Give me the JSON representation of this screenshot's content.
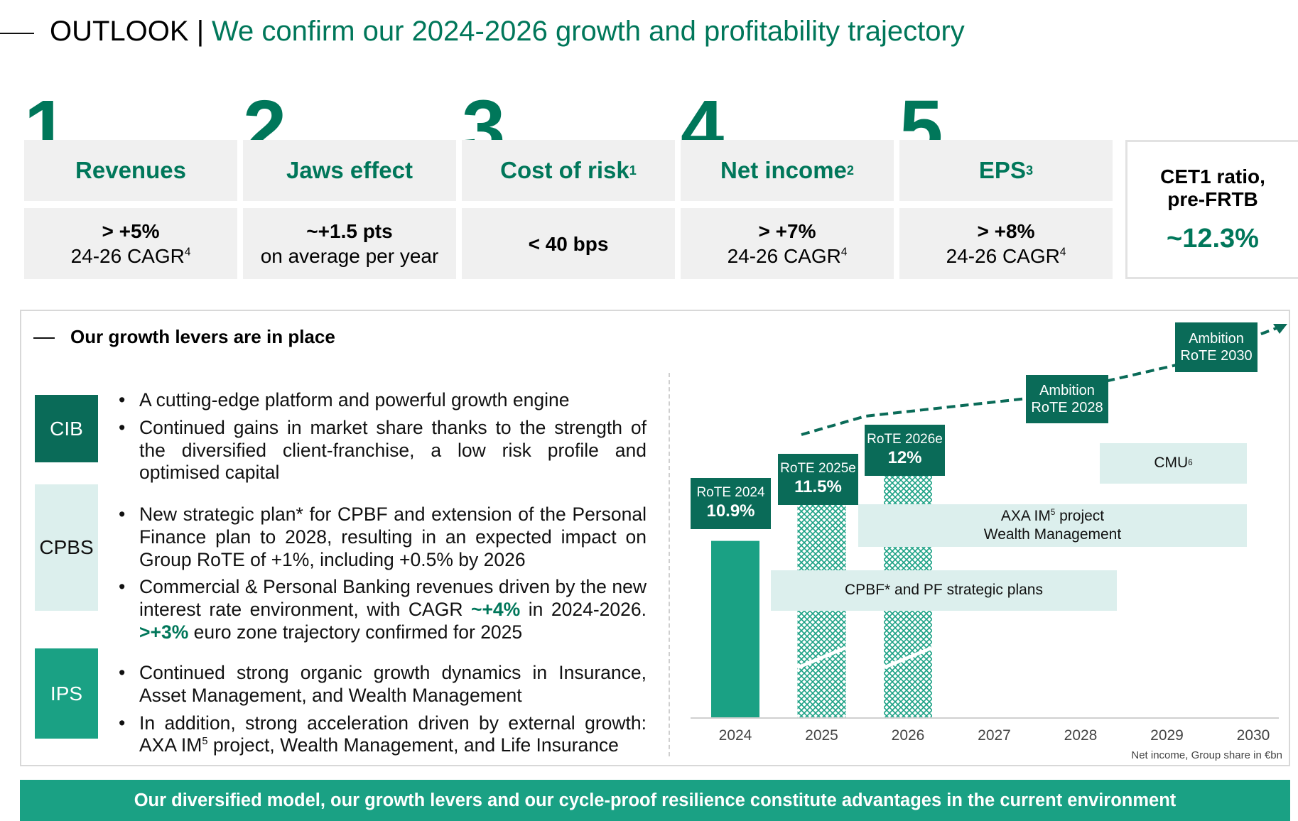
{
  "header": {
    "section": "OUTLOOK |",
    "title": "We confirm our 2024-2026 growth and profitability trajectory"
  },
  "kpis": [
    {
      "number": "1",
      "label": "Revenues",
      "label_sup": "",
      "value_bold": "> +5%",
      "value_text": "24-26 CAGR",
      "value_sup": "4"
    },
    {
      "number": "2",
      "label": "Jaws effect",
      "label_sup": "",
      "value_bold": "~+1.5 pts",
      "value_text": "on average per year",
      "value_sup": ""
    },
    {
      "number": "3",
      "label": "Cost of risk",
      "label_sup": "1",
      "value_bold": "< 40 bps",
      "value_text": "",
      "value_sup": ""
    },
    {
      "number": "4",
      "label": "Net income",
      "label_sup": "2",
      "value_bold": "> +7%",
      "value_text": "24-26 CAGR",
      "value_sup": "4"
    },
    {
      "number": "5",
      "label": "EPS",
      "label_sup": "3",
      "value_bold": "> +8%",
      "value_text": "24-26 CAGR",
      "value_sup": "4"
    }
  ],
  "cet1": {
    "label_line1": "CET1 ratio,",
    "label_line2": "pre-FRTB",
    "value": "~12.3%"
  },
  "levers": {
    "title": "Our growth levers are in place",
    "segments": [
      {
        "name": "CIB",
        "bg": "#0a6b58",
        "fg": "#ffffff"
      },
      {
        "name": "CPBS",
        "bg": "#dcefed",
        "fg": "#111111"
      },
      {
        "name": "IPS",
        "bg": "#1aa184",
        "fg": "#ffffff"
      }
    ],
    "cib_bullets": [
      "A cutting-edge platform and powerful growth engine",
      "Continued gains in market share thanks to the strength of the diversified client-franchise, a low risk profile and optimised capital"
    ],
    "cpbs_bullet1": "New strategic plan* for CPBF and extension of the Personal Finance plan to 2028, resulting in an expected impact on Group RoTE of +1%, including +0.5% by 2026",
    "cpbs_bullet2": {
      "part1": "Commercial & Personal Banking revenues driven by the new interest rate environment, with CAGR ",
      "hl1": "~+4%",
      "part2": " in 2024-2026. ",
      "hl2": ">+3%",
      "part3": " euro zone trajectory confirmed for 2025"
    },
    "ips_bullet1": "Continued strong organic growth dynamics in Insurance, Asset Management, and Wealth Management",
    "ips_bullet2_a": "In addition, strong acceleration driven by external growth: AXA IM",
    "ips_bullet2_sup": "5",
    "ips_bullet2_b": " project, Wealth Management, and Life Insurance"
  },
  "chart_data": {
    "type": "bar",
    "categories": [
      "2024",
      "2025",
      "2026",
      "2027",
      "2028",
      "2029",
      "2030"
    ],
    "series": [
      {
        "name": "RoTE",
        "values": [
          10.9,
          11.5,
          12.0,
          null,
          null,
          null,
          null
        ]
      }
    ],
    "rote_labels": [
      {
        "year": "2024",
        "line1": "RoTE 2024",
        "line2": "10.9%"
      },
      {
        "year": "2025",
        "line1": "RoTE 2025e",
        "line2": "11.5%"
      },
      {
        "year": "2026",
        "line1": "RoTE 2026e",
        "line2": "12%"
      },
      {
        "year": "2028",
        "line1": "Ambition",
        "line2": "RoTE 2028"
      },
      {
        "year": "2030",
        "line1": "Ambition",
        "line2": "RoTE 2030"
      }
    ],
    "growth_levers": [
      {
        "label": "CMU",
        "sup": "6",
        "from": "2028",
        "to": "2029"
      },
      {
        "label_line1": "AXA IM",
        "sup": "5",
        "label_line1_end": " project",
        "label_line2": "Wealth Management",
        "from": "2026",
        "to": "2029"
      },
      {
        "label": "CPBF* and PF strategic plans",
        "from": "2025",
        "to": "2028"
      }
    ],
    "note": "Net income, Group share in €bn",
    "colors": {
      "bar": "#1aa184",
      "label": "#0a6b58",
      "lever": "#dcefed"
    }
  },
  "footer": {
    "text": "Our diversified model, our growth levers and our cycle-proof resilience constitute advantages in the current environment"
  }
}
